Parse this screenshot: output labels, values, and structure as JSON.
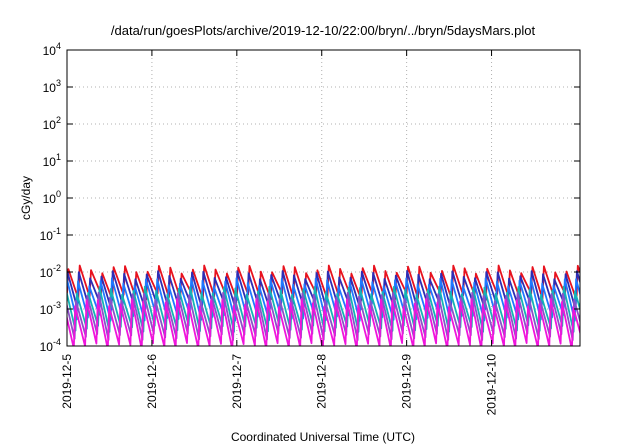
{
  "chart_data": {
    "type": "line",
    "title": "/data/run/goesPlots/archive/2019-12-10/22:00/bryn/../bryn/5daysMars.plot",
    "xlabel": "Coordinated Universal Time (UTC)",
    "ylabel": "cGy/day",
    "x_scale": "time",
    "xlim": [
      "2019-12-05",
      "2019-12-11T01:00"
    ],
    "x_ticks": [
      "2019-12-5",
      "2019-12-6",
      "2019-12-7",
      "2019-12-8",
      "2019-12-9",
      "2019-12-10"
    ],
    "y_scale": "log",
    "ylim": [
      0.0001,
      10000
    ],
    "y_ticks": [
      {
        "base": "10",
        "exp": "4"
      },
      {
        "base": "10",
        "exp": "3"
      },
      {
        "base": "10",
        "exp": "2"
      },
      {
        "base": "10",
        "exp": "1"
      },
      {
        "base": "10",
        "exp": "0"
      },
      {
        "base": "10",
        "exp": "-1"
      },
      {
        "base": "10",
        "exp": "-2"
      },
      {
        "base": "10",
        "exp": "-3"
      },
      {
        "base": "10",
        "exp": "-4"
      }
    ],
    "grid": true,
    "legend": "none",
    "series": [
      {
        "color": "#e8121e",
        "peak": 0.012,
        "trough": 0.0022,
        "teeth_per_day": 7.5,
        "phase": 0.0
      },
      {
        "color": "#2d2db4",
        "peak": 0.0085,
        "trough": 0.0012,
        "teeth_per_day": 7.5,
        "phase": 0.08
      },
      {
        "color": "#1f78ff",
        "peak": 0.0055,
        "trough": 0.0006,
        "teeth_per_day": 7.5,
        "phase": 0.15
      },
      {
        "color": "#14b4b4",
        "peak": 0.0032,
        "trough": 0.0003,
        "teeth_per_day": 7.5,
        "phase": 0.25
      },
      {
        "color": "#8c50c8",
        "peak": 0.0022,
        "trough": 0.00018,
        "teeth_per_day": 7.5,
        "phase": 0.33
      },
      {
        "color": "#f014dc",
        "peak": 0.0015,
        "trough": 0.0001,
        "teeth_per_day": 7.5,
        "phase": 0.4
      }
    ]
  }
}
